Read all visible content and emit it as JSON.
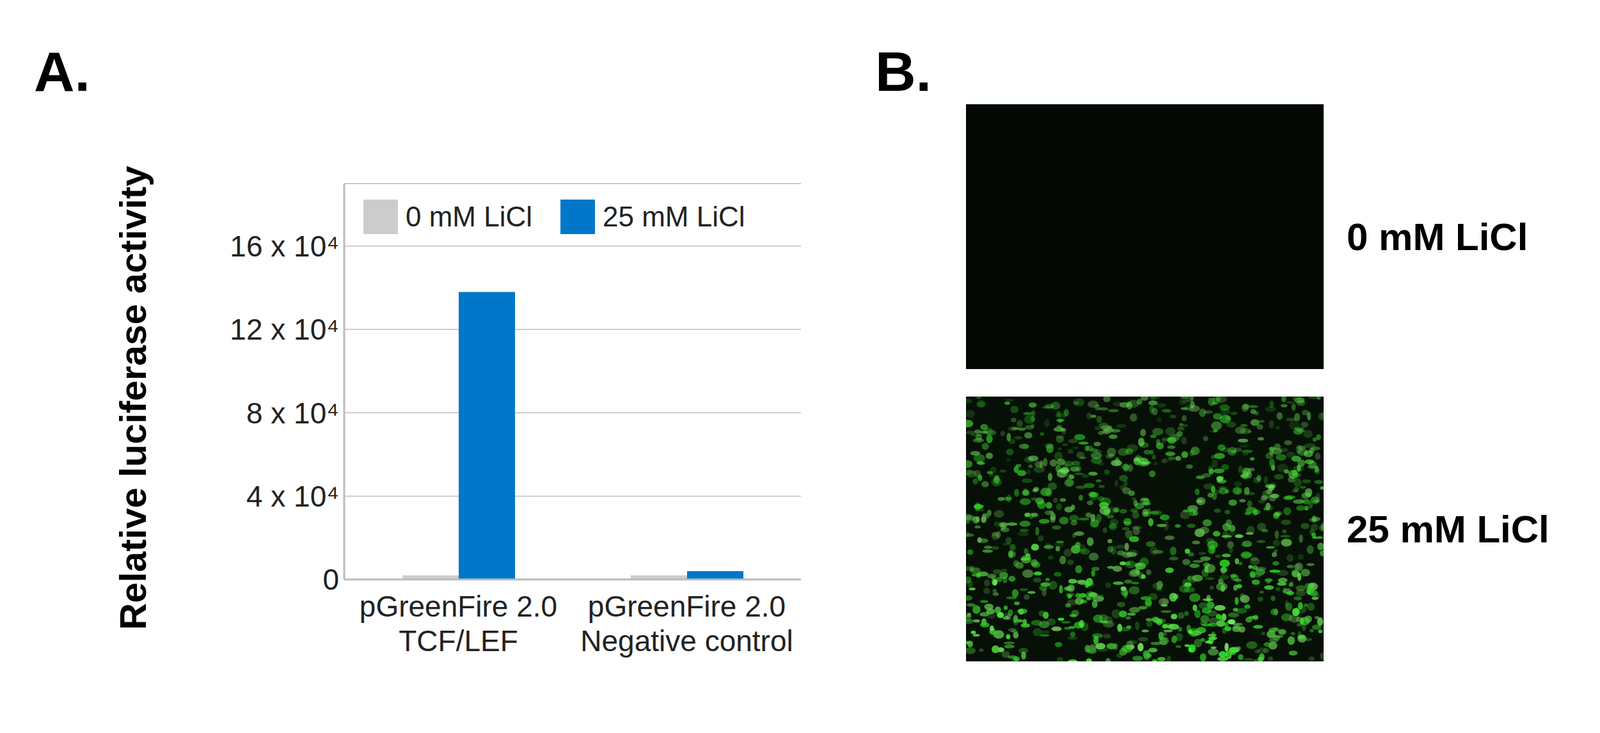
{
  "chart_data": {
    "type": "bar",
    "title": "A.",
    "categories": [
      "pGreenFire 2.0\nTCF/LEF",
      "pGreenFire 2.0\nNegative control"
    ],
    "series": [
      {
        "name": "0 mM LiCl",
        "color": "#cccccc",
        "values": [
          2000,
          2000
        ]
      },
      {
        "name": "25 mM LiCl",
        "color": "#0077c8",
        "values": [
          138000,
          4000
        ]
      }
    ],
    "ylabel": "Relative luciferase activity",
    "ylim": [
      0,
      190000
    ],
    "yticks": [
      0,
      {
        "value": 40000,
        "label": "4 x 10⁴"
      },
      {
        "value": 80000,
        "label": "8 x 10⁴"
      },
      {
        "value": 120000,
        "label": "12 x 10⁴"
      },
      {
        "value": 160000,
        "label": "16 x 10⁴"
      }
    ],
    "grid": true,
    "legend": "top"
  },
  "image_panel": {
    "label": "B.",
    "images": [
      {
        "label": "0 mM LiCl",
        "signal": false
      },
      {
        "label": "25 mM LiCl",
        "signal": true
      }
    ]
  }
}
